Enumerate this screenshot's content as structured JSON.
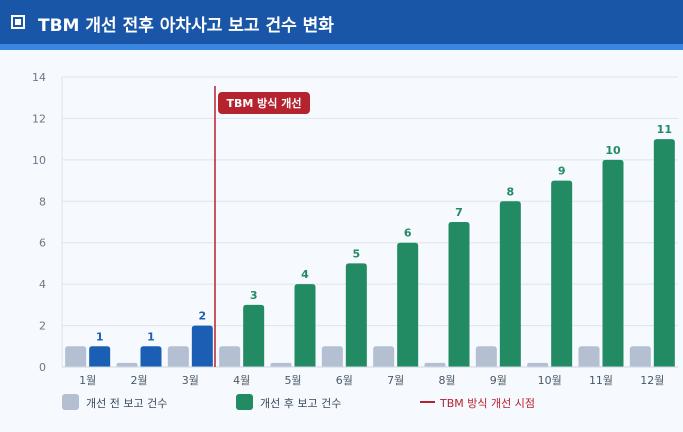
{
  "header": {
    "title": "TBM 개선 전후 아차사고 보고 건수 변화",
    "icon": "checkbox-square-icon"
  },
  "chart_data": {
    "type": "bar",
    "title": "TBM 개선 전후 아차사고 보고 건수 변화",
    "categories": [
      "1월",
      "2월",
      "3월",
      "4월",
      "5월",
      "6월",
      "7월",
      "8월",
      "9월",
      "10월",
      "11월",
      "12월"
    ],
    "series": [
      {
        "name": "개선 전 보고 건수",
        "values": [
          1,
          0.2,
          1,
          1,
          0.2,
          1,
          1,
          0.2,
          1,
          0.2,
          1,
          1
        ],
        "color": "#b4bfd2"
      },
      {
        "name": "개선 후 보고 건수",
        "values": [
          1,
          1,
          2,
          3,
          4,
          5,
          6,
          7,
          8,
          9,
          10,
          11
        ],
        "colors": [
          "#1a5fb4",
          "#1a5fb4",
          "#1a5fb4",
          "#228b63",
          "#228b63",
          "#228b63",
          "#228b63",
          "#228b63",
          "#228b63",
          "#228b63",
          "#228b63",
          "#228b63"
        ],
        "data_labels": [
          "1",
          "1",
          "2",
          "3",
          "4",
          "5",
          "6",
          "7",
          "8",
          "9",
          "10",
          "11"
        ]
      }
    ],
    "yticks": [
      "0",
      "2",
      "4",
      "6",
      "8",
      "10",
      "12",
      "14"
    ],
    "ylim": [
      0,
      14
    ],
    "grid": true,
    "legend": "bottom-left",
    "annotation": {
      "label": "TBM 방식 개선",
      "after_category": "3월",
      "color": "#b5232f"
    },
    "legend_line_label": "TBM 방식 개선 시점"
  }
}
